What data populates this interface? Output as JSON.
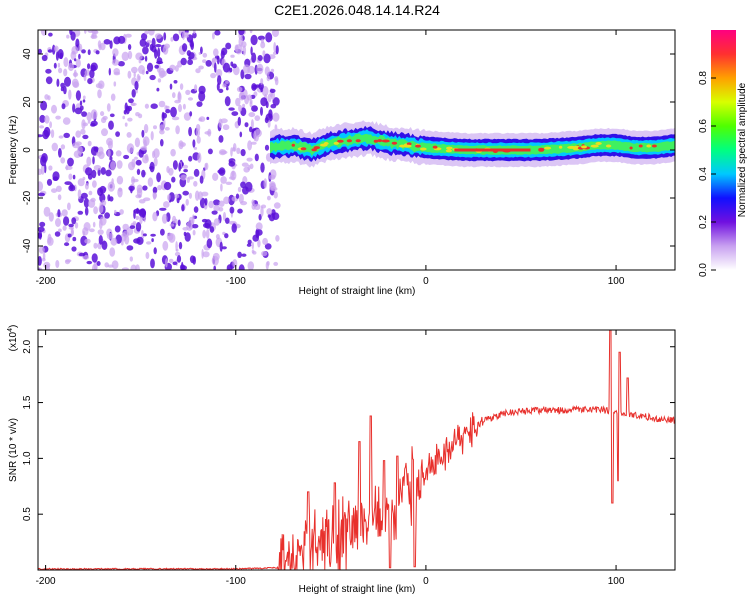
{
  "title": "C2E1.2026.048.14.14.R24",
  "colors": {
    "line": "#e8302c",
    "dot_dark": "#5a10d8",
    "dot_light": "#c9a2f0",
    "band_core": "#e8302c"
  },
  "chart_data": [
    {
      "type": "heatmap",
      "xlabel": "Height of straight line (km)",
      "ylabel": "Frequency (Hz)",
      "xlim": [
        -204,
        131
      ],
      "ylim": [
        -50,
        50
      ],
      "x_ticks": [
        "-200",
        "-100",
        "0",
        "100"
      ],
      "y_ticks": [
        "-40",
        "-20",
        "0",
        "20",
        "40"
      ],
      "noise_region_x": [
        -204,
        -78
      ],
      "band": {
        "x_range": [
          -82,
          131
        ],
        "center_hz": [
          [
            -82,
            1
          ],
          [
            -70,
            2
          ],
          [
            -60,
            0
          ],
          [
            -50,
            3
          ],
          [
            -40,
            4
          ],
          [
            -30,
            5
          ],
          [
            -20,
            3
          ],
          [
            -10,
            2
          ],
          [
            0,
            1
          ],
          [
            20,
            0
          ],
          [
            40,
            0
          ],
          [
            60,
            0
          ],
          [
            80,
            1
          ],
          [
            90,
            2
          ],
          [
            100,
            2
          ],
          [
            110,
            1
          ],
          [
            120,
            1
          ],
          [
            131,
            2
          ]
        ]
      },
      "colorbar": {
        "label": "Normalized spectral amplitude",
        "range": [
          0.0,
          1.0
        ],
        "ticks": [
          "0.0",
          "0.2",
          "0.4",
          "0.6",
          "0.8"
        ],
        "stops": [
          "#ffffff",
          "#c8a0f0",
          "#7010e0",
          "#1010ff",
          "#00c8ff",
          "#00ff80",
          "#50ff00",
          "#d8ff00",
          "#ffa000",
          "#ff3030",
          "#ff0080"
        ]
      }
    },
    {
      "type": "line",
      "xlabel": "Height of straight line (km)",
      "ylabel": "SNR (10 * v/v)",
      "multiplier": "(x10",
      "multiplier_exp": "4",
      "multiplier_close": ")",
      "xlim": [
        -204,
        131
      ],
      "ylim": [
        0,
        2.15
      ],
      "x_ticks": [
        "-200",
        "-100",
        "0",
        "100"
      ],
      "y_ticks": [
        "0.5",
        "1.0",
        "1.5",
        "2.0"
      ],
      "series": [
        {
          "name": "SNR",
          "trend": [
            [
              -204,
              0.01
            ],
            [
              -150,
              0.01
            ],
            [
              -100,
              0.01
            ],
            [
              -78,
              0.02
            ],
            [
              -70,
              0.1
            ],
            [
              -60,
              0.25
            ],
            [
              -50,
              0.3
            ],
            [
              -40,
              0.35
            ],
            [
              -30,
              0.45
            ],
            [
              -20,
              0.55
            ],
            [
              -10,
              0.7
            ],
            [
              -5,
              0.75
            ],
            [
              0,
              0.92
            ],
            [
              10,
              1.05
            ],
            [
              20,
              1.2
            ],
            [
              30,
              1.33
            ],
            [
              40,
              1.4
            ],
            [
              50,
              1.42
            ],
            [
              60,
              1.43
            ],
            [
              70,
              1.43
            ],
            [
              80,
              1.44
            ],
            [
              90,
              1.44
            ],
            [
              100,
              1.42
            ],
            [
              110,
              1.39
            ],
            [
              120,
              1.36
            ],
            [
              131,
              1.34
            ]
          ],
          "spikes": [
            [
              -62,
              0.7
            ],
            [
              -48,
              0.78
            ],
            [
              -35,
              1.15
            ],
            [
              -29,
              1.38
            ],
            [
              -22,
              0.98
            ],
            [
              -15,
              1.02
            ],
            [
              97,
              2.15
            ],
            [
              102,
              1.95
            ],
            [
              106,
              1.72
            ]
          ],
          "dips": [
            [
              -19,
              0.02
            ],
            [
              -6,
              0.03
            ],
            [
              98,
              0.6
            ],
            [
              101,
              0.8
            ]
          ]
        }
      ]
    }
  ]
}
